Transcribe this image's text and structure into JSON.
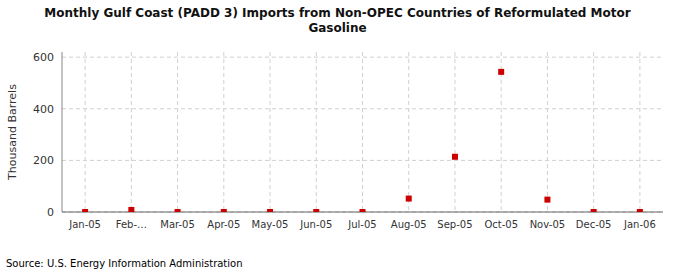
{
  "chart_data": {
    "type": "scatter",
    "title": "Monthly Gulf Coast (PADD 3) Imports from Non-OPEC Countries of Reformulated Motor\nGasoline",
    "y_label": "Thousand Barrels",
    "source": "Source: U.S. Energy Information Administration",
    "categories": [
      "Jan-05",
      "Feb-…",
      "Mar-05",
      "Apr-05",
      "May-05",
      "Jun-05",
      "Jul-05",
      "Aug-05",
      "Sep-05",
      "Oct-05",
      "Nov-05",
      "Dec-05",
      "Jan-06"
    ],
    "values": [
      0,
      8,
      0,
      0,
      0,
      0,
      0,
      52,
      214,
      543,
      48,
      0,
      0
    ],
    "color": "#cc0000",
    "marker": "square",
    "ylim": [
      0,
      620
    ],
    "yticks": [
      0,
      200,
      400,
      600
    ],
    "grid": true
  }
}
